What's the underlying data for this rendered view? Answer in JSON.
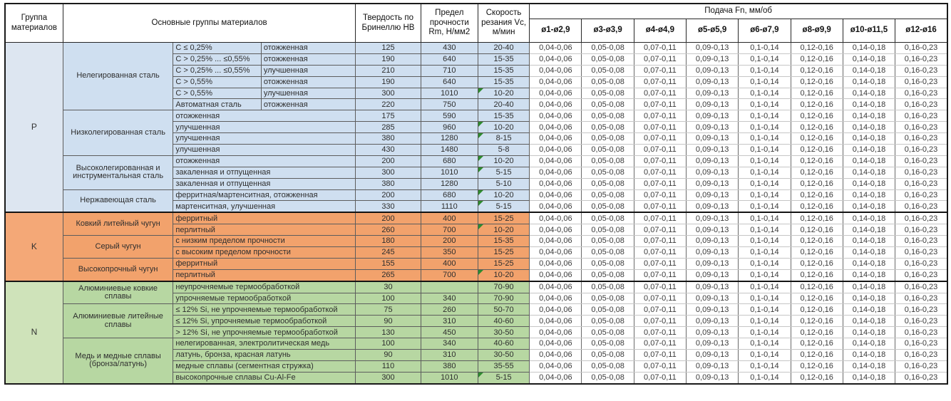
{
  "headers": {
    "group": "Группа материалов",
    "main_groups": "Основные группы материалов",
    "hardness": "Твердость по Бринеллю HB",
    "strength": "Предел прочности Rm, Н/мм2",
    "speed": "Скорость резания Vc, м/мин",
    "feed": "Подача Fn, мм/об",
    "diameters": [
      "ø1-ø2,9",
      "ø3-ø3,9",
      "ø4-ø4,9",
      "ø5-ø5,9",
      "ø6-ø7,9",
      "ø8-ø9,9",
      "ø10-ø11,5",
      "ø12-ø16"
    ]
  },
  "feed_values": [
    "0,04-0,06",
    "0,05-0,08",
    "0,07-0,11",
    "0,09-0,13",
    "0,1-0,14",
    "0,12-0,16",
    "0,14-0,18",
    "0,16-0,23"
  ],
  "colors": {
    "marker_green": "#2e8b2e",
    "grid_dark": "#5d5d5d",
    "outer_border": "#1a1a1a"
  },
  "sections": [
    {
      "code": "P",
      "left_bg": "#dde6f1",
      "cell_bg": "#cfdff0",
      "subgroups": [
        {
          "name": "Нелегированная сталь",
          "rows": [
            {
              "c1": "C ≤ 0,25%",
              "c2": "отожженная",
              "hb": "125",
              "rm": "430",
              "vc": "20-40",
              "mark": false
            },
            {
              "c1": "C > 0,25% ... ≤0,55%",
              "c2": "отожженная",
              "hb": "190",
              "rm": "640",
              "vc": "15-35",
              "mark": false
            },
            {
              "c1": "C > 0,25% ... ≤0,55%",
              "c2": "улучшенная",
              "hb": "210",
              "rm": "710",
              "vc": "15-35",
              "mark": false
            },
            {
              "c1": "C > 0,55%",
              "c2": "отожженная",
              "hb": "190",
              "rm": "640",
              "vc": "15-35",
              "mark": false
            },
            {
              "c1": "C > 0,55%",
              "c2": "улучшенная",
              "hb": "300",
              "rm": "1010",
              "vc": "10-20",
              "mark": true
            },
            {
              "c1": "Автоматная сталь",
              "c2": "отожженная",
              "hb": "220",
              "rm": "750",
              "vc": "20-40",
              "mark": false
            }
          ]
        },
        {
          "name": "Низколегированная сталь",
          "rows": [
            {
              "desc": "отожженная",
              "hb": "175",
              "rm": "590",
              "vc": "15-35",
              "mark": false
            },
            {
              "desc": "улучшенная",
              "hb": "285",
              "rm": "960",
              "vc": "10-20",
              "mark": true
            },
            {
              "desc": "улучшенная",
              "hb": "380",
              "rm": "1280",
              "vc": "8-15",
              "mark": true
            },
            {
              "desc": "улучшенная",
              "hb": "430",
              "rm": "1480",
              "vc": "5-8",
              "mark": false
            }
          ]
        },
        {
          "name": "Высоколегированная и инструментальная сталь",
          "rows": [
            {
              "desc": "отожженная",
              "hb": "200",
              "rm": "680",
              "vc": "10-20",
              "mark": true
            },
            {
              "desc": "закаленная и отпущенная",
              "hb": "300",
              "rm": "1010",
              "vc": "5-15",
              "mark": true
            },
            {
              "desc": "закаленная и отпущенная",
              "hb": "380",
              "rm": "1280",
              "vc": "5-10",
              "mark": false
            }
          ]
        },
        {
          "name": "Нержавеющая сталь",
          "rows": [
            {
              "desc": "ферритная/мартенситная, отожженная",
              "hb": "200",
              "rm": "680",
              "vc": "10-20",
              "mark": true
            },
            {
              "desc": "мартенситная, улучшенная",
              "hb": "330",
              "rm": "1110",
              "vc": "5-15",
              "mark": true
            }
          ]
        }
      ]
    },
    {
      "code": "K",
      "left_bg": "#f4a877",
      "cell_bg": "#f2a26c",
      "subgroups": [
        {
          "name": "Ковкий литейный чугун",
          "rows": [
            {
              "desc": "ферритный",
              "hb": "200",
              "rm": "400",
              "vc": "15-25",
              "mark": false
            },
            {
              "desc": "перлитный",
              "hb": "260",
              "rm": "700",
              "vc": "10-20",
              "mark": true
            }
          ]
        },
        {
          "name": "Серый чугун",
          "rows": [
            {
              "desc": "с низким пределом прочности",
              "hb": "180",
              "rm": "200",
              "vc": "15-35",
              "mark": false
            },
            {
              "desc": "с высоким пределом прочности",
              "hb": "245",
              "rm": "350",
              "vc": "15-25",
              "mark": false
            }
          ]
        },
        {
          "name": "Высокопрочный чугун",
          "rows": [
            {
              "desc": "ферритный",
              "hb": "155",
              "rm": "400",
              "vc": "15-25",
              "mark": false
            },
            {
              "desc": "перлитный",
              "hb": "265",
              "rm": "700",
              "vc": "10-20",
              "mark": true
            }
          ]
        }
      ]
    },
    {
      "code": "N",
      "left_bg": "#cfe3ba",
      "cell_bg": "#b7d7a2",
      "subgroups": [
        {
          "name": "Алюминиевые ковкие сплавы",
          "rows": [
            {
              "desc": "неупрочняемые термообработкой",
              "hb": "30",
              "rm": "",
              "vc": "70-90",
              "mark": false
            },
            {
              "desc": "упрочняемые термообработкой",
              "hb": "100",
              "rm": "340",
              "vc": "70-90",
              "mark": false
            }
          ]
        },
        {
          "name": "Алюминиевые литейные сплавы",
          "rows": [
            {
              "desc": "≤ 12% Si, не упрочняемые термообработкой",
              "hb": "75",
              "rm": "260",
              "vc": "50-70",
              "mark": false
            },
            {
              "desc": "≤ 12% Si, упрочняемые термообработкой",
              "hb": "90",
              "rm": "310",
              "vc": "40-60",
              "mark": false
            },
            {
              "desc": "> 12% Si, не упрочняемые термообработкой",
              "hb": "130",
              "rm": "450",
              "vc": "30-50",
              "mark": false
            }
          ]
        },
        {
          "name": "Медь и медные сплавы (бронза/латунь)",
          "rows": [
            {
              "desc": "нелегированная, электролитическая медь",
              "hb": "100",
              "rm": "340",
              "vc": "40-60",
              "mark": false
            },
            {
              "desc": "латунь, бронза, красная латунь",
              "hb": "90",
              "rm": "310",
              "vc": "30-50",
              "mark": false
            },
            {
              "desc": "медные сплавы (сегментная стружка)",
              "hb": "110",
              "rm": "380",
              "vc": "35-55",
              "mark": false
            },
            {
              "desc": "высокопрочные сплавы Cu-Al-Fe",
              "hb": "300",
              "rm": "1010",
              "vc": "5-15",
              "mark": true
            }
          ]
        }
      ]
    }
  ]
}
